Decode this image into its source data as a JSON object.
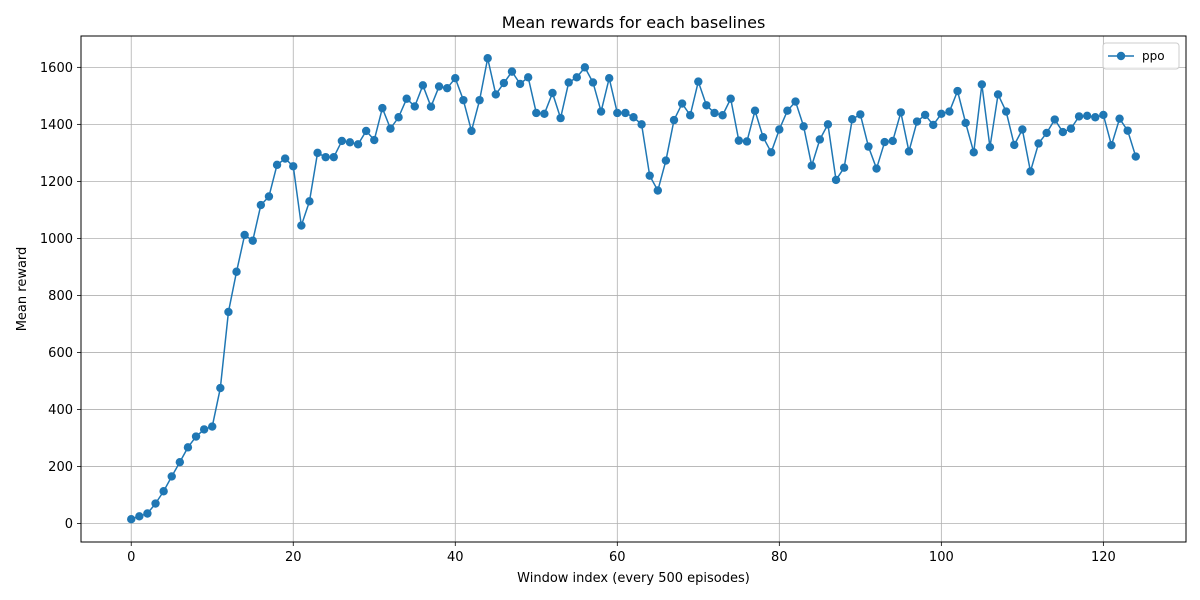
{
  "chart_data": {
    "type": "line",
    "title": "Mean rewards for each baselines",
    "xlabel": "Window index (every 500 episodes)",
    "ylabel": "Mean reward",
    "xlim": [
      -6.2,
      130.2
    ],
    "ylim": [
      -65,
      1710
    ],
    "xticks": [
      0,
      20,
      40,
      60,
      80,
      100,
      120
    ],
    "yticks": [
      0,
      200,
      400,
      600,
      800,
      1000,
      1200,
      1400,
      1600
    ],
    "grid": true,
    "legend_position": "top-right",
    "series": [
      {
        "name": "ppo",
        "color": "#1f77b4",
        "marker": "circle",
        "x": [
          0,
          1,
          2,
          3,
          4,
          5,
          6,
          7,
          8,
          9,
          10,
          11,
          12,
          13,
          14,
          15,
          16,
          17,
          18,
          19,
          20,
          21,
          22,
          23,
          24,
          25,
          26,
          27,
          28,
          29,
          30,
          31,
          32,
          33,
          34,
          35,
          36,
          37,
          38,
          39,
          40,
          41,
          42,
          43,
          44,
          45,
          46,
          47,
          48,
          49,
          50,
          51,
          52,
          53,
          54,
          55,
          56,
          57,
          58,
          59,
          60,
          61,
          62,
          63,
          64,
          65,
          66,
          67,
          68,
          69,
          70,
          71,
          72,
          73,
          74,
          75,
          76,
          77,
          78,
          79,
          80,
          81,
          82,
          83,
          84,
          85,
          86,
          87,
          88,
          89,
          90,
          91,
          92,
          93,
          94,
          95,
          96,
          97,
          98,
          99,
          100,
          101,
          102,
          103,
          104,
          105,
          106,
          107,
          108,
          109,
          110,
          111,
          112,
          113,
          114,
          115,
          116,
          117,
          118,
          119,
          120,
          121,
          122,
          123,
          124
        ],
        "y": [
          15,
          25,
          35,
          70,
          113,
          165,
          215,
          267,
          305,
          330,
          340,
          475,
          742,
          883,
          1012,
          992,
          1117,
          1147,
          1258,
          1280,
          1253,
          1045,
          1130,
          1300,
          1285,
          1285,
          1342,
          1337,
          1330,
          1377,
          1345,
          1457,
          1385,
          1425,
          1490,
          1463,
          1537,
          1462,
          1533,
          1527,
          1562,
          1485,
          1377,
          1485,
          1632,
          1505,
          1545,
          1585,
          1542,
          1565,
          1440,
          1437,
          1510,
          1422,
          1547,
          1565,
          1600,
          1547,
          1445,
          1562,
          1440,
          1440,
          1425,
          1400,
          1220,
          1168,
          1273,
          1415,
          1473,
          1432,
          1550,
          1467,
          1440,
          1432,
          1490,
          1343,
          1340,
          1448,
          1355,
          1302,
          1382,
          1448,
          1480,
          1393,
          1255,
          1347,
          1400,
          1205,
          1248,
          1418,
          1435,
          1322,
          1245,
          1338,
          1342,
          1442,
          1305,
          1410,
          1433,
          1398,
          1437,
          1445,
          1517,
          1405,
          1302,
          1540,
          1320,
          1505,
          1445,
          1328,
          1382,
          1235,
          1333,
          1370,
          1417,
          1373,
          1385,
          1428,
          1430,
          1425,
          1433,
          1327,
          1420,
          1378,
          1287
        ]
      }
    ]
  }
}
